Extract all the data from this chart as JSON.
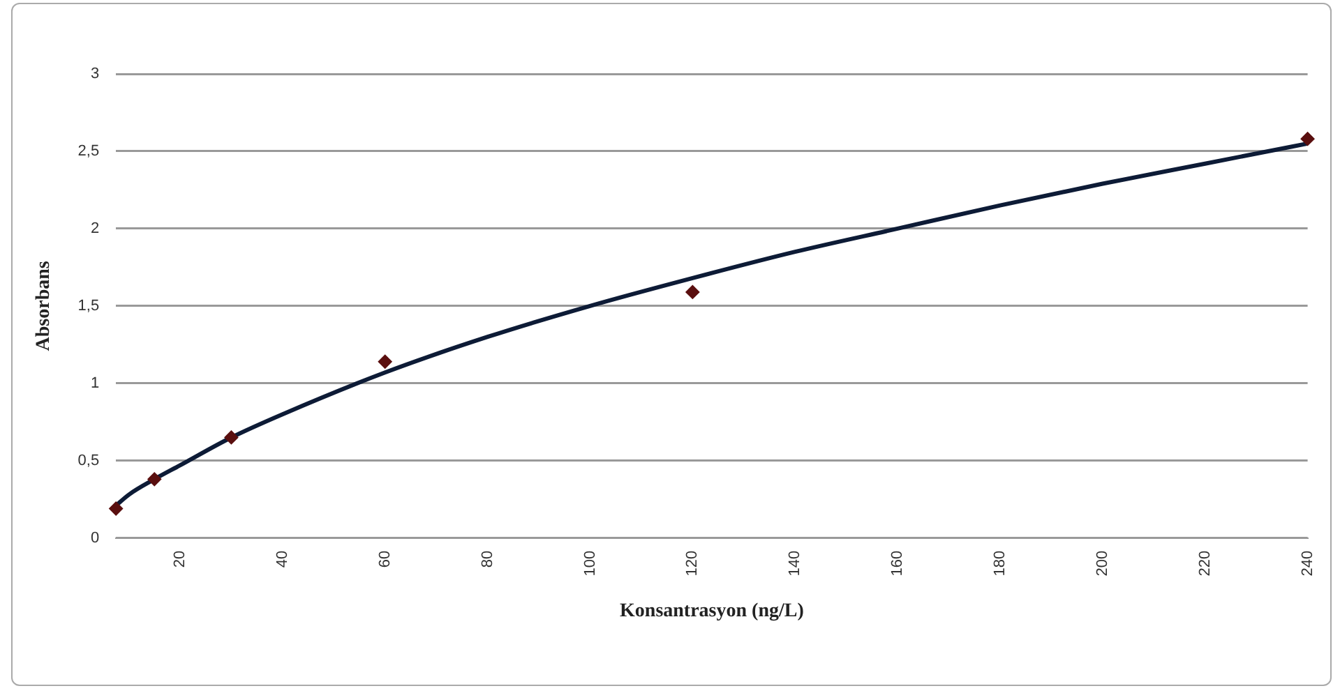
{
  "chart_data": {
    "type": "scatter",
    "xlabel": "Konsantrasyon (ng/L)",
    "ylabel": "Absorbans",
    "x": [
      7.5,
      15,
      30,
      60,
      120,
      240
    ],
    "series": [
      {
        "type": "scatter",
        "color": "#5a0f0f",
        "marker": "diamond",
        "values": [
          0.19,
          0.38,
          0.65,
          1.14,
          1.59,
          2.58
        ]
      },
      {
        "type": "line",
        "color": "#0d1b36",
        "marker": "none",
        "x": [
          7.5,
          10,
          15,
          20,
          30,
          40,
          60,
          80,
          100,
          120,
          140,
          160,
          180,
          200,
          220,
          240
        ],
        "values": [
          0.21,
          0.28,
          0.38,
          0.47,
          0.65,
          0.8,
          1.07,
          1.3,
          1.5,
          1.68,
          1.85,
          2.0,
          2.15,
          2.29,
          2.42,
          2.55
        ]
      }
    ],
    "xlim": [
      7.5,
      240
    ],
    "ylim": [
      0,
      3
    ],
    "xticks": [
      20,
      40,
      60,
      80,
      100,
      120,
      140,
      160,
      180,
      200,
      220,
      240
    ],
    "yticks": [
      0,
      {
        "value": 0.5,
        "label": "0,5"
      },
      1,
      {
        "value": 1.5,
        "label": "1,5"
      },
      2,
      {
        "value": 2.5,
        "label": "2,5"
      },
      3
    ],
    "grid": "y",
    "legend": false
  }
}
